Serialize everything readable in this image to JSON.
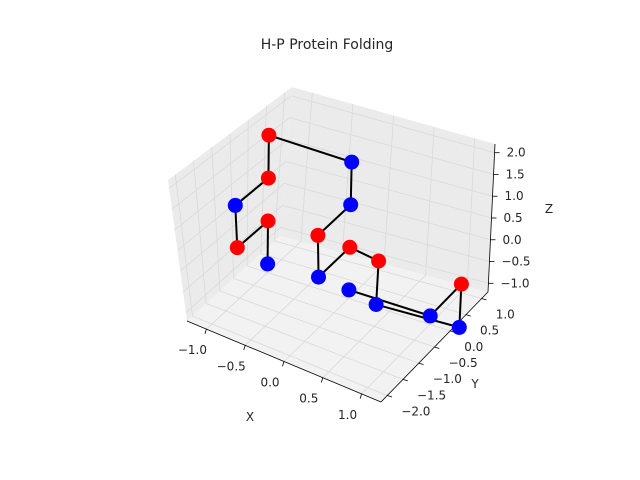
{
  "chart_data": {
    "type": "scatter",
    "title": "H-P Protein Folding",
    "xlabel": "X",
    "ylabel": "Y",
    "zlabel": "Z",
    "xlim": [
      -1.25,
      1.25
    ],
    "ylim": [
      -2.2,
      1.2
    ],
    "zlim": [
      -1.2,
      2.2
    ],
    "xticks": [
      "−1.0",
      "−0.5",
      "0.0",
      "0.5",
      "1.0"
    ],
    "yticks": [
      "−2.0",
      "−1.5",
      "−1.0",
      "−0.5",
      "0.0",
      "0.5",
      "1.0"
    ],
    "zticks": [
      "−1.0",
      "−0.5",
      "0.0",
      "0.5",
      "1.0",
      "1.5",
      "2.0"
    ],
    "grid": true,
    "colors": {
      "H": "#ff0000",
      "P": "#0000ff",
      "bond": "#000000",
      "pane": "#f2f2f2",
      "pane_side": "#ebebeb",
      "grid": "#d9d9d9"
    },
    "chain": [
      {
        "x": 0,
        "y": 0,
        "z": -1,
        "type": "P"
      },
      {
        "x": 1,
        "y": 0,
        "z": -1,
        "type": "P"
      },
      {
        "x": 1,
        "y": 1,
        "z": -1,
        "type": "H"
      },
      {
        "x": 1,
        "y": 1,
        "z": -2,
        "type": "P"
      },
      {
        "x": 0,
        "y": 1,
        "z": -2,
        "type": "P"
      },
      {
        "x": 0,
        "y": 1,
        "z": -1,
        "type": "H"
      },
      {
        "x": 0,
        "y": 0,
        "z": 0,
        "type": "H"
      },
      {
        "x": 0,
        "y": -1,
        "z": 0,
        "type": "P"
      },
      {
        "x": 0,
        "y": -1,
        "z": 1,
        "type": "H"
      },
      {
        "x": 0,
        "y": 0,
        "z": 1,
        "type": "P"
      },
      {
        "x": 0,
        "y": 0,
        "z": 2,
        "type": "P"
      },
      {
        "x": -1,
        "y": 0,
        "z": 2,
        "type": "H"
      },
      {
        "x": -1,
        "y": 0,
        "z": 1,
        "type": "H"
      },
      {
        "x": -1,
        "y": -1,
        "z": 1,
        "type": "P"
      },
      {
        "x": -1,
        "y": -1,
        "z": 0,
        "type": "H"
      },
      {
        "x": -1,
        "y": 0,
        "z": 0,
        "type": "H"
      },
      {
        "x": -1,
        "y": 0,
        "z": -1,
        "type": "P"
      }
    ]
  }
}
